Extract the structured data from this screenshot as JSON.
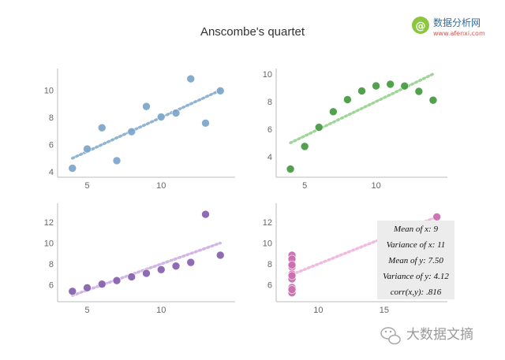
{
  "title": "Anscombe's quartet",
  "watermark_top": {
    "logo_glyph": "@",
    "name": "数据分析网",
    "url": "www.afenxi.com",
    "colors": {
      "logo": "#8cc63f",
      "name": "#2e6da4",
      "url": "#d9534f"
    }
  },
  "watermark_bottom": {
    "icon": "wechat-icon",
    "text": "大数据文摘",
    "color": "#9a9a9a"
  },
  "annotation": {
    "lines": [
      "Mean of x: 9",
      "Variance of x: 11",
      "Mean of y: 7.50",
      "Variance of y: 4.12",
      "corr(x,y): .816"
    ]
  },
  "chart_data": [
    {
      "type": "scatter",
      "panel": "top-left",
      "color": "#7fa7cc",
      "fit_color": "#7fa7cc",
      "x": [
        10,
        8,
        13,
        9,
        11,
        14,
        6,
        4,
        12,
        7,
        5
      ],
      "y": [
        8.04,
        6.95,
        7.58,
        8.81,
        8.33,
        9.96,
        7.24,
        4.26,
        10.84,
        4.82,
        5.68
      ],
      "fit": {
        "slope": 0.5,
        "intercept": 3,
        "x_range": [
          4,
          14
        ]
      },
      "xlim": [
        3,
        15
      ],
      "ylim": [
        3.6,
        11.6
      ],
      "xticks": [
        5,
        10
      ],
      "yticks": [
        4,
        6,
        8,
        10
      ],
      "grid": false
    },
    {
      "type": "scatter",
      "panel": "top-right",
      "color": "#4a9b45",
      "fit_color": "#8fcf85",
      "x": [
        10,
        8,
        13,
        9,
        11,
        14,
        6,
        4,
        12,
        7,
        5
      ],
      "y": [
        9.14,
        8.14,
        8.74,
        8.77,
        9.26,
        8.1,
        6.13,
        3.1,
        9.13,
        7.26,
        4.74
      ],
      "fit": {
        "slope": 0.5,
        "intercept": 3,
        "x_range": [
          4,
          14
        ]
      },
      "xlim": [
        3,
        15
      ],
      "ylim": [
        2.5,
        10.4
      ],
      "xticks": [
        5,
        10
      ],
      "yticks": [
        4,
        6,
        8,
        10
      ],
      "grid": false
    },
    {
      "type": "scatter",
      "panel": "bottom-left",
      "color": "#8a64b0",
      "fit_color": "#c9a9e0",
      "x": [
        10,
        8,
        13,
        9,
        11,
        14,
        6,
        4,
        12,
        7,
        5
      ],
      "y": [
        7.46,
        6.77,
        12.74,
        7.11,
        7.81,
        8.84,
        6.08,
        5.39,
        8.15,
        6.42,
        5.73
      ],
      "fit": {
        "slope": 0.5,
        "intercept": 3,
        "x_range": [
          4,
          14
        ]
      },
      "xlim": [
        3,
        15
      ],
      "ylim": [
        4.4,
        13.8
      ],
      "xticks": [
        5,
        10
      ],
      "yticks": [
        6,
        8,
        10,
        12
      ],
      "grid": false
    },
    {
      "type": "scatter",
      "panel": "bottom-right",
      "color": "#cc6fb0",
      "fit_color": "#eeb0dc",
      "x": [
        8,
        8,
        8,
        8,
        8,
        8,
        8,
        19,
        8,
        8,
        8
      ],
      "y": [
        6.58,
        5.76,
        7.71,
        8.84,
        8.47,
        7.04,
        5.25,
        12.5,
        5.56,
        7.91,
        6.89
      ],
      "fit": {
        "slope": 0.5,
        "intercept": 3,
        "x_range": [
          8,
          19
        ]
      },
      "xlim": [
        6.8,
        19.8
      ],
      "ylim": [
        4.4,
        13.8
      ],
      "xticks": [
        10,
        15
      ],
      "yticks": [
        6,
        8,
        10,
        12
      ],
      "grid": false
    }
  ]
}
